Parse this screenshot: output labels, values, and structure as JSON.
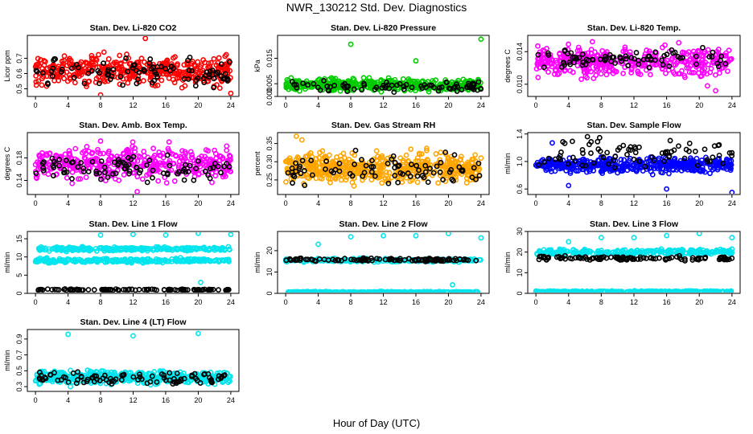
{
  "figure": {
    "title": "NWR_130212  Std. Dev. Diagnostics",
    "xlabel": "Hour of Day (UTC)"
  },
  "chart_data": [
    {
      "type": "scatter",
      "title": "Stan. Dev. Li-820 CO2",
      "ylabel": "Licor ppm",
      "xlim": [
        -1,
        25
      ],
      "ylim": [
        0.45,
        0.85
      ],
      "xticks": [
        "0",
        "4",
        "8",
        "12",
        "16",
        "20",
        "24"
      ],
      "yticks": [
        "0.5",
        "0.6",
        "0.7"
      ],
      "ytick_values": [
        0.5,
        0.6,
        0.7
      ],
      "color": "#ff0000",
      "bands": [
        {
          "center": 0.62,
          "spread": 0.06,
          "n": 420
        }
      ],
      "black_points": {
        "center": 0.6,
        "spread": 0.06,
        "n": 90
      },
      "outliers": [
        [
          13.5,
          0.83
        ],
        [
          8,
          0.46
        ],
        [
          24,
          0.47
        ]
      ]
    },
    {
      "type": "scatter",
      "title": "Stan. Dev. Li-820 Pressure",
      "ylabel": "kPa",
      "xlim": [
        -1,
        25
      ],
      "ylim": [
        0,
        0.024
      ],
      "xticks": [
        "0",
        "4",
        "8",
        "12",
        "16",
        "20",
        "24"
      ],
      "yticks": [
        "0.000",
        "0.005",
        "0.015"
      ],
      "ytick_values": [
        0.0,
        0.005,
        0.015
      ],
      "color": "#00cc00",
      "bands": [
        {
          "center": 0.0045,
          "spread": 0.0015,
          "n": 420
        }
      ],
      "black_points": {
        "center": 0.004,
        "spread": 0.0015,
        "n": 80
      },
      "outliers": [
        [
          8,
          0.0205
        ],
        [
          16,
          0.014
        ],
        [
          24,
          0.0225
        ]
      ]
    },
    {
      "type": "scatter",
      "title": "Stan. Dev. Li-820 Temp.",
      "ylabel": "degrees C",
      "xlim": [
        -1,
        25
      ],
      "ylim": [
        0.0085,
        0.016
      ],
      "xticks": [
        "0",
        "4",
        "8",
        "12",
        "16",
        "20",
        "24"
      ],
      "yticks": [
        "0.010",
        "0.014"
      ],
      "ytick_values": [
        0.01,
        0.014
      ],
      "color": "#ff00ff",
      "bands": [
        {
          "center": 0.0128,
          "spread": 0.0011,
          "n": 420
        }
      ],
      "black_points": {
        "center": 0.013,
        "spread": 0.0008,
        "n": 80
      },
      "outliers": [
        [
          21,
          0.0098
        ],
        [
          22,
          0.0092
        ]
      ]
    },
    {
      "type": "scatter",
      "title": "Stan. Dev. Amb. Box Temp.",
      "ylabel": "degrees C",
      "xlim": [
        -1,
        25
      ],
      "ylim": [
        0.115,
        0.225
      ],
      "xticks": [
        "0",
        "4",
        "8",
        "12",
        "16",
        "20",
        "24"
      ],
      "yticks": [
        "0.14",
        "0.18"
      ],
      "ytick_values": [
        0.14,
        0.18
      ],
      "color": "#ff00ff",
      "bands": [
        {
          "center": 0.17,
          "spread": 0.018,
          "n": 420
        }
      ],
      "black_points": {
        "center": 0.162,
        "spread": 0.015,
        "n": 90
      },
      "outliers": [
        [
          12.5,
          0.12
        ],
        [
          8,
          0.21
        ]
      ]
    },
    {
      "type": "scatter",
      "title": "Stan. Dev. Gas Stream RH",
      "ylabel": "percent",
      "xlim": [
        -1,
        25
      ],
      "ylim": [
        0.21,
        0.38
      ],
      "xticks": [
        "0",
        "4",
        "8",
        "12",
        "16",
        "20",
        "24"
      ],
      "yticks": [
        "0.25",
        "0.30",
        "0.35"
      ],
      "ytick_values": [
        0.25,
        0.3,
        0.35
      ],
      "color": "#ffa500",
      "bands": [
        {
          "center": 0.283,
          "spread": 0.025,
          "n": 520
        }
      ],
      "black_points": {
        "center": 0.275,
        "spread": 0.025,
        "n": 80
      },
      "outliers": [
        [
          1.3,
          0.37
        ],
        [
          2,
          0.36
        ],
        [
          24,
          0.31
        ]
      ]
    },
    {
      "type": "scatter",
      "title": "Stan. Dev. Sample Flow",
      "ylabel": "ml/min",
      "xlim": [
        -1,
        25
      ],
      "ylim": [
        0.52,
        1.42
      ],
      "xticks": [
        "0",
        "4",
        "8",
        "12",
        "16",
        "20",
        "24"
      ],
      "yticks": [
        "0.6",
        "1.0",
        "1.4"
      ],
      "ytick_values": [
        0.6,
        1.0,
        1.4
      ],
      "color": "#0000ff",
      "bands": [
        {
          "center": 0.95,
          "spread": 0.07,
          "n": 440
        }
      ],
      "black_points": {
        "center": 1.12,
        "spread": 0.13,
        "n": 80
      },
      "outliers": [
        [
          24,
          0.55
        ],
        [
          16,
          0.6
        ],
        [
          4,
          0.65
        ],
        [
          2,
          1.27
        ]
      ]
    },
    {
      "type": "scatter",
      "title": "Stan. Dev. Line 1 Flow",
      "ylabel": "ml/min",
      "xlim": [
        -1,
        25
      ],
      "ylim": [
        0,
        17
      ],
      "xticks": [
        "0",
        "4",
        "8",
        "12",
        "16",
        "20",
        "24"
      ],
      "yticks": [
        "0",
        "5",
        "10",
        "15"
      ],
      "ytick_values": [
        0,
        5,
        10,
        15
      ],
      "color": "#00e5ee",
      "bands": [
        {
          "center": 12.2,
          "spread": 0.35,
          "n": 260
        },
        {
          "center": 9.0,
          "spread": 0.35,
          "n": 260
        }
      ],
      "black_points": {
        "center": 1.0,
        "spread": 0.12,
        "n": 100
      },
      "outliers": [
        [
          8,
          16
        ],
        [
          12,
          16.2
        ],
        [
          16,
          16
        ],
        [
          20,
          16.5
        ],
        [
          24,
          16.2
        ],
        [
          20.3,
          3
        ]
      ]
    },
    {
      "type": "scatter",
      "title": "Stan. Dev. Line 2 Flow",
      "ylabel": "ml/min",
      "xlim": [
        -1,
        25
      ],
      "ylim": [
        0,
        29
      ],
      "xticks": [
        "0",
        "4",
        "8",
        "12",
        "16",
        "20",
        "24"
      ],
      "yticks": [
        "0",
        "10",
        "20"
      ],
      "ytick_values": [
        0,
        10,
        20
      ],
      "color": "#00e5ee",
      "bands": [
        {
          "center": 0.5,
          "spread": 0.25,
          "n": 320
        },
        {
          "center": 15.5,
          "spread": 0.5,
          "n": 200
        }
      ],
      "black_points": {
        "center": 15.8,
        "spread": 0.5,
        "n": 110
      },
      "outliers": [
        [
          4,
          23
        ],
        [
          8,
          26.5
        ],
        [
          12,
          27
        ],
        [
          16,
          27
        ],
        [
          20,
          28
        ],
        [
          24,
          26
        ],
        [
          20.5,
          4
        ]
      ]
    },
    {
      "type": "scatter",
      "title": "Stan. Dev. Line 3 Flow",
      "ylabel": "ml/min",
      "xlim": [
        -1,
        25
      ],
      "ylim": [
        0,
        30
      ],
      "xticks": [
        "0",
        "4",
        "8",
        "12",
        "16",
        "20",
        "24"
      ],
      "yticks": [
        "0",
        "10",
        "20",
        "30"
      ],
      "ytick_values": [
        0,
        10,
        20,
        30
      ],
      "color": "#00e5ee",
      "bands": [
        {
          "center": 0.8,
          "spread": 0.25,
          "n": 320
        },
        {
          "center": 20.0,
          "spread": 0.9,
          "n": 260
        }
      ],
      "black_points": {
        "center": 17.0,
        "spread": 0.7,
        "n": 110
      },
      "outliers": [
        [
          4,
          25
        ],
        [
          8,
          27
        ],
        [
          12,
          27
        ],
        [
          16,
          28
        ],
        [
          20,
          29
        ],
        [
          24,
          27
        ]
      ]
    },
    {
      "type": "scatter",
      "title": "Stan. Dev. Line 4 (LT) Flow",
      "ylabel": "ml/min",
      "xlim": [
        -1,
        25
      ],
      "ylim": [
        0.24,
        1.02
      ],
      "xticks": [
        "0",
        "4",
        "8",
        "12",
        "16",
        "20",
        "24"
      ],
      "yticks": [
        "0.3",
        "0.5",
        "0.7",
        "0.9"
      ],
      "ytick_values": [
        0.3,
        0.5,
        0.7,
        0.9
      ],
      "color": "#00e5ee",
      "bands": [
        {
          "center": 0.42,
          "spread": 0.05,
          "n": 440
        }
      ],
      "black_points": {
        "center": 0.41,
        "spread": 0.05,
        "n": 90
      },
      "outliers": [
        [
          4,
          0.96
        ],
        [
          12,
          0.94
        ],
        [
          20,
          0.97
        ],
        [
          4.3,
          0.3
        ]
      ]
    }
  ]
}
